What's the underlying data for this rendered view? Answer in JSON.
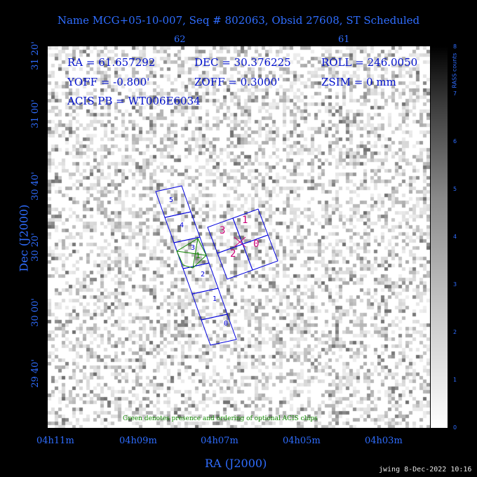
{
  "title": "Name MCG+05-10-007, Seq # 802063, Obsid 27608, ST Scheduled",
  "axes": {
    "top_ticks": [
      "62",
      "61"
    ],
    "left_ticks": [
      "31 20'",
      "31 00'",
      "30 40'",
      "30 20'",
      "30 00'",
      "29 40'"
    ],
    "bottom_ticks": [
      "04h11m",
      "04h09m",
      "04h07m",
      "04h05m",
      "04h03m"
    ],
    "x_title": "RA (J2000)",
    "y_title": "Dec (J2000)"
  },
  "colorbar": {
    "title": "RASS counts",
    "ticks": [
      "0",
      "1",
      "2",
      "3",
      "4",
      "5",
      "6",
      "7",
      "8"
    ]
  },
  "info": {
    "ra": "RA = 61.657292",
    "dec": "DEC = 30.376225",
    "roll": "ROLL = 246.0050",
    "yoff": "YOFF =  -0.800'",
    "zoff": "ZOFF =  0.3000'",
    "zsim": "ZSIM = 0 mm",
    "acis_pb": "ACIS PB = WT006E6034"
  },
  "chips": {
    "acis_s": [
      "5",
      "4",
      "3",
      "2",
      "1",
      "0"
    ],
    "acis_i": [
      "3",
      "1",
      "2",
      "0"
    ],
    "optional": "1"
  },
  "colors": {
    "chip_outline": "#0000dd",
    "acis_i_label": "#cc0077",
    "optional": "#118800",
    "axis_text": "#2f6dff"
  },
  "note": "Green denotes presence and ordering of optional ACIS chips",
  "footer": "jwing  8-Dec-2022 10:16"
}
